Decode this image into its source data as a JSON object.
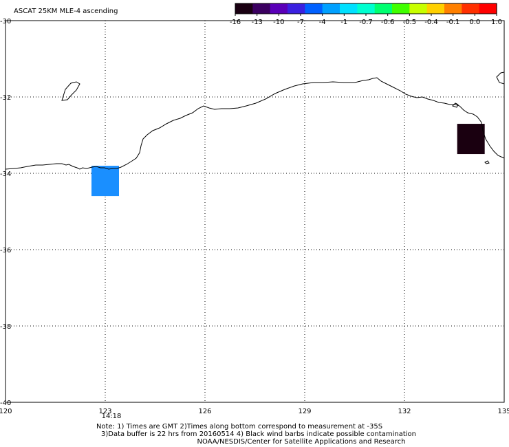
{
  "title": "ASCAT 25KM MLE-4 ascending",
  "colorbar": {
    "labels": [
      "-16",
      "-13",
      "-10",
      "-7",
      "-4",
      "-1",
      "-0.7",
      "-0.6",
      "-0.5",
      "-0.4",
      "-0.1",
      "0.0",
      "1.0"
    ],
    "colors": [
      "#1a0012",
      "#3b0060",
      "#5a00b8",
      "#3a20e0",
      "#0060ff",
      "#00a0ff",
      "#00e0ff",
      "#00ffd0",
      "#00ff70",
      "#40ff00",
      "#c8ff00",
      "#ffd000",
      "#ff8000",
      "#ff3000",
      "#ff0000"
    ]
  },
  "axes": {
    "lon_ticks": [
      "120",
      "123",
      "126",
      "129",
      "132",
      "135"
    ],
    "lat_ticks": [
      "-30",
      "-32",
      "-34",
      "-36",
      "-38",
      "-40"
    ]
  },
  "time_label": "14:18",
  "time_color": "#ff2000",
  "data_cells": [
    {
      "lon": 123.0,
      "lat": -34.2,
      "color": "#1a8fff"
    },
    {
      "lon": 134.0,
      "lat": -33.1,
      "color": "#1a0010"
    }
  ],
  "notes": {
    "line1": "Note: 1) Times are GMT 2)Times along bottom correspond to measurement at -35S",
    "line2": "3)Data buffer is 22 hrs from 20160514 4) Black wind barbs indicate possible contamination",
    "line3": "NOAA/NESDIS/Center for Satellite Applications and Research"
  }
}
